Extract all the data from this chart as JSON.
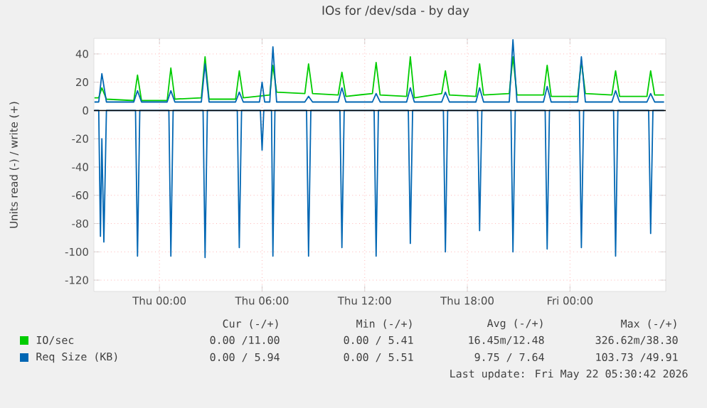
{
  "chart_data": {
    "type": "line",
    "title": "IOs for /dev/sda - by day",
    "ylabel": "Units read (-) / write (+)",
    "xlim": [
      "2026-05-20T20:10",
      "2026-05-22T05:36"
    ],
    "ylim": [
      -128,
      51
    ],
    "xticks": [
      {
        "value": "2026-05-21T00:00",
        "label": "Thu 00:00"
      },
      {
        "value": "2026-05-21T06:00",
        "label": "Thu 06:00"
      },
      {
        "value": "2026-05-21T12:00",
        "label": "Thu 12:00"
      },
      {
        "value": "2026-05-21T18:00",
        "label": "Thu 18:00"
      },
      {
        "value": "2026-05-22T00:00",
        "label": "Fri 00:00"
      }
    ],
    "yticks": [
      -120,
      -100,
      -80,
      -60,
      -40,
      -20,
      0,
      20,
      40
    ],
    "grid": true,
    "legend": "bottom",
    "ref_lines": [
      {
        "axis": "y",
        "value": 0,
        "color": "#000000"
      }
    ],
    "series": [
      {
        "name": "IO/sec",
        "color": "#00cc00",
        "x": [
          "2026-05-20T20:12",
          "2026-05-20T20:27",
          "2026-05-20T20:38",
          "2026-05-20T20:54",
          "2026-05-20T22:30",
          "2026-05-20T22:43",
          "2026-05-20T22:57",
          "2026-05-21T00:27",
          "2026-05-21T00:40",
          "2026-05-21T00:54",
          "2026-05-21T02:27",
          "2026-05-21T02:40",
          "2026-05-21T02:54",
          "2026-05-21T04:27",
          "2026-05-21T04:40",
          "2026-05-21T04:54",
          "2026-05-21T06:27",
          "2026-05-21T06:38",
          "2026-05-21T06:51",
          "2026-05-21T08:30",
          "2026-05-21T08:43",
          "2026-05-21T08:57",
          "2026-05-21T10:27",
          "2026-05-21T10:40",
          "2026-05-21T10:54",
          "2026-05-21T12:27",
          "2026-05-21T12:40",
          "2026-05-21T12:54",
          "2026-05-21T14:27",
          "2026-05-21T14:40",
          "2026-05-21T14:54",
          "2026-05-21T16:30",
          "2026-05-21T16:43",
          "2026-05-21T16:57",
          "2026-05-21T18:30",
          "2026-05-21T18:43",
          "2026-05-21T18:57",
          "2026-05-21T20:27",
          "2026-05-21T20:40",
          "2026-05-21T20:54",
          "2026-05-21T22:27",
          "2026-05-21T22:40",
          "2026-05-21T22:54",
          "2026-05-22T00:27",
          "2026-05-22T00:40",
          "2026-05-22T00:54",
          "2026-05-22T02:27",
          "2026-05-22T02:40",
          "2026-05-22T02:54",
          "2026-05-22T04:30",
          "2026-05-22T04:43",
          "2026-05-22T04:57",
          "2026-05-22T05:30"
        ],
        "values": [
          9,
          9,
          16,
          8,
          7,
          25,
          7,
          7,
          30,
          8,
          9,
          38,
          8,
          8,
          28,
          9,
          11,
          32,
          13,
          12,
          33,
          12,
          11,
          27,
          10,
          12,
          34,
          11,
          10,
          38,
          9,
          12,
          28,
          11,
          10,
          33,
          11,
          12,
          38,
          11,
          11,
          32,
          10,
          10,
          35,
          12,
          11,
          28,
          10,
          10,
          28,
          11,
          11
        ]
      },
      {
        "name": "Req Size (KB)",
        "color": "#0066b3",
        "x": [
          "2026-05-20T20:12",
          "2026-05-20T20:27",
          "2026-05-20T20:38",
          "2026-05-20T20:54",
          "2026-05-20T22:30",
          "2026-05-20T22:43",
          "2026-05-20T22:57",
          "2026-05-21T00:27",
          "2026-05-21T00:40",
          "2026-05-21T00:54",
          "2026-05-21T02:27",
          "2026-05-21T02:40",
          "2026-05-21T02:54",
          "2026-05-21T04:27",
          "2026-05-21T04:40",
          "2026-05-21T04:54",
          "2026-05-21T05:51",
          "2026-05-21T06:00",
          "2026-05-21T06:09",
          "2026-05-21T06:27",
          "2026-05-21T06:38",
          "2026-05-21T06:51",
          "2026-05-21T08:30",
          "2026-05-21T08:43",
          "2026-05-21T08:57",
          "2026-05-21T10:27",
          "2026-05-21T10:40",
          "2026-05-21T10:54",
          "2026-05-21T12:27",
          "2026-05-21T12:40",
          "2026-05-21T12:54",
          "2026-05-21T14:27",
          "2026-05-21T14:40",
          "2026-05-21T14:54",
          "2026-05-21T16:30",
          "2026-05-21T16:43",
          "2026-05-21T16:57",
          "2026-05-21T18:30",
          "2026-05-21T18:43",
          "2026-05-21T18:57",
          "2026-05-21T20:27",
          "2026-05-21T20:40",
          "2026-05-21T20:54",
          "2026-05-21T22:27",
          "2026-05-21T22:40",
          "2026-05-21T22:54",
          "2026-05-22T00:27",
          "2026-05-22T00:40",
          "2026-05-22T00:54",
          "2026-05-22T02:27",
          "2026-05-22T02:40",
          "2026-05-22T02:54",
          "2026-05-22T04:30",
          "2026-05-22T04:43",
          "2026-05-22T04:57",
          "2026-05-22T05:30"
        ],
        "values": [
          6,
          6,
          26,
          6,
          6,
          14,
          6,
          6,
          14,
          6,
          6,
          33,
          6,
          6,
          13,
          6,
          6,
          20,
          6,
          6,
          45,
          6,
          6,
          10,
          6,
          6,
          16,
          6,
          6,
          12,
          6,
          6,
          16,
          6,
          6,
          13,
          6,
          6,
          16,
          6,
          6,
          50,
          6,
          6,
          17,
          6,
          6,
          38,
          6,
          6,
          14,
          6,
          6,
          12,
          6,
          6
        ]
      },
      {
        "color": "#0066b3",
        "x": [
          "2026-05-20T20:12",
          "2026-05-20T20:27",
          "2026-05-20T20:33",
          "2026-05-20T20:38",
          "2026-05-20T20:45",
          "2026-05-20T20:54",
          "2026-05-20T22:36",
          "2026-05-20T22:43",
          "2026-05-20T22:51",
          "2026-05-21T00:33",
          "2026-05-21T00:40",
          "2026-05-21T00:48",
          "2026-05-21T02:33",
          "2026-05-21T02:40",
          "2026-05-21T02:48",
          "2026-05-21T04:33",
          "2026-05-21T04:40",
          "2026-05-21T04:48",
          "2026-05-21T05:54",
          "2026-05-21T06:00",
          "2026-05-21T06:06",
          "2026-05-21T06:33",
          "2026-05-21T06:38",
          "2026-05-21T06:45",
          "2026-05-21T08:36",
          "2026-05-21T08:43",
          "2026-05-21T08:51",
          "2026-05-21T10:33",
          "2026-05-21T10:40",
          "2026-05-21T10:48",
          "2026-05-21T12:33",
          "2026-05-21T12:40",
          "2026-05-21T12:48",
          "2026-05-21T14:33",
          "2026-05-21T14:40",
          "2026-05-21T14:48",
          "2026-05-21T16:36",
          "2026-05-21T16:43",
          "2026-05-21T16:51",
          "2026-05-21T18:36",
          "2026-05-21T18:43",
          "2026-05-21T18:51",
          "2026-05-21T20:33",
          "2026-05-21T20:40",
          "2026-05-21T20:48",
          "2026-05-21T22:33",
          "2026-05-21T22:40",
          "2026-05-21T22:48",
          "2026-05-22T00:33",
          "2026-05-22T00:40",
          "2026-05-22T00:48",
          "2026-05-22T02:33",
          "2026-05-22T02:40",
          "2026-05-22T02:48",
          "2026-05-22T04:36",
          "2026-05-22T04:43",
          "2026-05-22T04:51",
          "2026-05-22T05:30"
        ],
        "values": [
          0,
          0,
          -89,
          -20,
          -93,
          0,
          0,
          -103,
          0,
          0,
          -103,
          0,
          0,
          -104,
          0,
          0,
          -97,
          0,
          0,
          -28,
          0,
          0,
          -103,
          0,
          0,
          -103,
          0,
          0,
          -97,
          0,
          0,
          -103,
          0,
          0,
          -94,
          0,
          0,
          -100,
          0,
          0,
          -85,
          0,
          0,
          -100,
          0,
          0,
          -98,
          0,
          0,
          -97,
          0,
          0,
          -103,
          0,
          0,
          -87,
          0,
          0
        ]
      }
    ],
    "annotations": [
      "Cur (-/+)",
      "Min (-/+)",
      "Avg (-/+)",
      "Max (-/+)",
      "0.00 /11.00",
      "0.00 / 5.41",
      "16.45m/12.48",
      "326.62m/38.30",
      "0.00 / 5.94",
      "0.00 / 5.51",
      "9.75 / 7.64",
      "103.73 /49.91",
      "Last update: Fri May 22 05:30:42 2026"
    ]
  }
}
